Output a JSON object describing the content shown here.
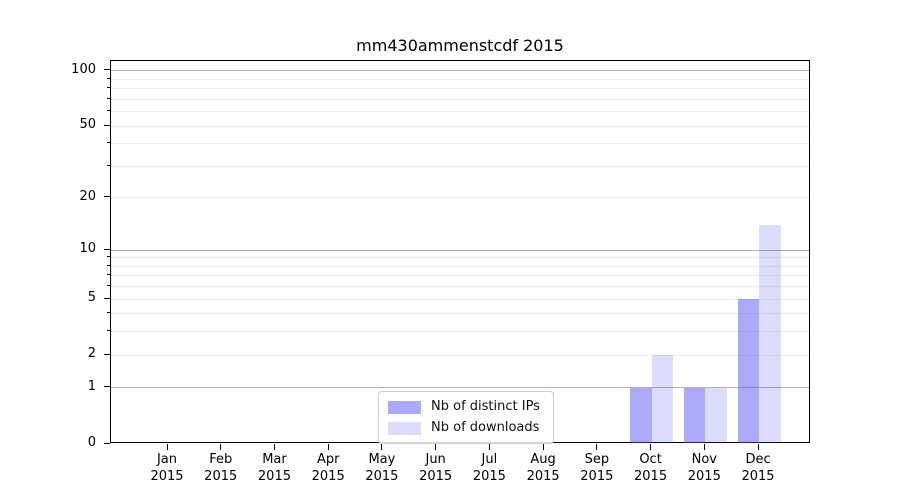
{
  "chart_data": {
    "type": "bar",
    "title": "mm430ammenstcdf 2015",
    "categories": [
      {
        "month": "Jan",
        "year": "2015"
      },
      {
        "month": "Feb",
        "year": "2015"
      },
      {
        "month": "Mar",
        "year": "2015"
      },
      {
        "month": "Apr",
        "year": "2015"
      },
      {
        "month": "May",
        "year": "2015"
      },
      {
        "month": "Jun",
        "year": "2015"
      },
      {
        "month": "Jul",
        "year": "2015"
      },
      {
        "month": "Aug",
        "year": "2015"
      },
      {
        "month": "Sep",
        "year": "2015"
      },
      {
        "month": "Oct",
        "year": "2015"
      },
      {
        "month": "Nov",
        "year": "2015"
      },
      {
        "month": "Dec",
        "year": "2015"
      }
    ],
    "series": [
      {
        "name": "Nb of distinct IPs",
        "color": "rgba(75,75,240,0.47)",
        "values": [
          0,
          0,
          0,
          0,
          0,
          0,
          0,
          0,
          0,
          1,
          1,
          5
        ]
      },
      {
        "name": "Nb of downloads",
        "color": "rgba(75,75,240,0.20)",
        "values": [
          0,
          0,
          0,
          0,
          0,
          0,
          0,
          0,
          0,
          2,
          1,
          14
        ]
      }
    ],
    "y_axis": {
      "scale": "log1p",
      "ticks": [
        0,
        1,
        2,
        5,
        10,
        20,
        50,
        100
      ],
      "minor_gridlines": [
        3,
        4,
        6,
        7,
        8,
        9,
        30,
        40,
        60,
        70,
        80,
        90
      ],
      "ylim": [
        0,
        113
      ]
    },
    "legend": {
      "position": "lower-center-inside"
    },
    "grid": true
  },
  "colors": {
    "decade_gridline": "#b3b3b3",
    "minor_gridline": "#ececec",
    "spine": "#000000",
    "text": "#000000",
    "legend_border": "#cccccc"
  }
}
